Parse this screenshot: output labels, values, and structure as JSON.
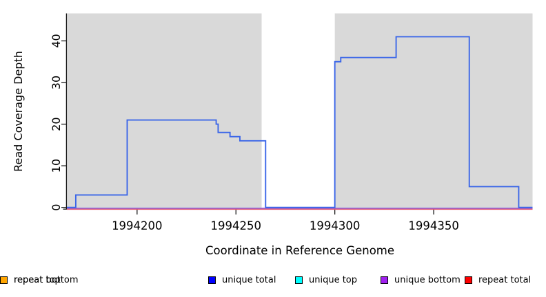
{
  "chart_data": {
    "type": "line",
    "subtype": "step",
    "title": "",
    "xlabel": "Coordinate in Reference Genome",
    "ylabel": "Read Coverage Depth",
    "xlim": [
      1994164.5,
      1994400
    ],
    "ylim": [
      -0.3,
      46.6
    ],
    "x_ticks": [
      1994200,
      1994250,
      1994300,
      1994350
    ],
    "y_ticks": [
      0,
      10,
      20,
      30,
      40
    ],
    "grid": false,
    "shaded_regions": [
      [
        1994164.5,
        1994263
      ],
      [
        1994300,
        1994400
      ]
    ],
    "series": [
      {
        "name": "unique total",
        "color": "#3B66E8",
        "steps": [
          [
            1994164.5,
            0
          ],
          [
            1994169,
            3
          ],
          [
            1994195,
            21
          ],
          [
            1994240,
            20
          ],
          [
            1994241,
            18
          ],
          [
            1994247,
            17
          ],
          [
            1994252,
            16
          ],
          [
            1994265,
            0
          ],
          [
            1994300,
            35
          ],
          [
            1994303,
            36
          ],
          [
            1994331,
            41
          ],
          [
            1994368,
            5
          ],
          [
            1994393,
            0
          ]
        ]
      },
      {
        "name": "unique bottom",
        "color": "#8460E6",
        "flat_value": 0
      },
      {
        "name": "repeat total",
        "color": "#E25A74",
        "flat_value": 0
      }
    ]
  },
  "legend": {
    "items": [
      {
        "label": "unique total",
        "color": "#0000FF"
      },
      {
        "label": "unique top",
        "color": "#00FFFF"
      },
      {
        "label": "unique bottom",
        "color": "#A020F0"
      },
      {
        "label": "repeat total",
        "color": "#FF0000"
      },
      {
        "label": "repeat top",
        "color": "#FFFF00"
      },
      {
        "label": "repeat bottom",
        "color": "#FFA500"
      }
    ]
  },
  "colors": {
    "panel": "#D9D9D9",
    "axis": "#1A1A1A",
    "background": "#FFFFFF"
  }
}
